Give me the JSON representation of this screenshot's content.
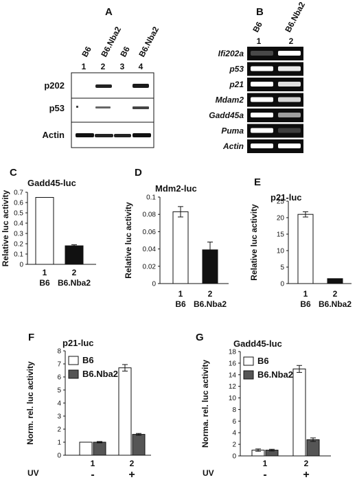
{
  "panels": {
    "A": {
      "letter": "A",
      "lane_numbers": [
        "1",
        "2",
        "3",
        "4"
      ],
      "strain_labels": [
        "B6",
        "B6.Nba2",
        "B6",
        "B6.Nba2"
      ],
      "rows": [
        "p202",
        "p53",
        "Actin"
      ]
    },
    "B": {
      "letter": "B",
      "lane_numbers": [
        "1",
        "2"
      ],
      "strain_labels": [
        "B6",
        "B6.Nba2"
      ],
      "genes": [
        "Ifi202a",
        "p53",
        "p21",
        "Mdam2",
        "Gadd45a",
        "Puma",
        "Actin"
      ]
    }
  },
  "chart_data": [
    {
      "id": "C",
      "type": "bar",
      "letter": "C",
      "title": "Gadd45-luc",
      "ylabel": "Relative luc activity",
      "categories": [
        "1",
        "2"
      ],
      "category_labels": [
        "B6",
        "B6.Nba2"
      ],
      "values": [
        0.65,
        0.18
      ],
      "errors": [
        0,
        0.01
      ],
      "ylim": [
        0,
        0.7
      ],
      "yticks": [
        "0",
        "0.1",
        "0.2",
        "0.3",
        "0.4",
        "0.5",
        "0.6",
        "0.7"
      ],
      "colors": [
        "#ffffff",
        "#111111"
      ]
    },
    {
      "id": "D",
      "type": "bar",
      "letter": "D",
      "title": "Mdm2-luc",
      "ylabel": "Relative luc activity",
      "categories": [
        "1",
        "2"
      ],
      "category_labels": [
        "B6",
        "B6.Nba2"
      ],
      "values": [
        0.083,
        0.039
      ],
      "errors": [
        0.006,
        0.009
      ],
      "ylim": [
        0,
        0.1
      ],
      "yticks": [
        "0",
        "0.02",
        "0.04",
        "0.06",
        "0.08",
        "0.1"
      ],
      "colors": [
        "#ffffff",
        "#111111"
      ]
    },
    {
      "id": "E",
      "type": "bar",
      "letter": "E",
      "title": "p21-luc",
      "ylabel": "Relative luc activity",
      "categories": [
        "1",
        "2"
      ],
      "category_labels": [
        "B6",
        "B6.Nba2"
      ],
      "values": [
        21,
        1.5
      ],
      "errors": [
        0.8,
        0
      ],
      "ylim": [
        0,
        25
      ],
      "yticks": [
        "0",
        "5",
        "10",
        "15",
        "20",
        "25"
      ],
      "colors": [
        "#ffffff",
        "#111111"
      ]
    },
    {
      "id": "F",
      "type": "bar",
      "letter": "F",
      "title": "p21-luc",
      "ylabel": "Norm. rel. luc activity",
      "categories": [
        "1",
        "2"
      ],
      "uv_label": "UV",
      "uv_values": [
        "-",
        "+"
      ],
      "series": [
        {
          "name": "B6",
          "values": [
            1.0,
            6.7
          ],
          "errors": [
            0,
            0.25
          ],
          "color": "#ffffff"
        },
        {
          "name": "B6.Nba2",
          "values": [
            1.0,
            1.6
          ],
          "errors": [
            0.05,
            0.07
          ],
          "color": "#555555"
        }
      ],
      "ylim": [
        0,
        8
      ],
      "yticks": [
        "0",
        "1",
        "2",
        "3",
        "4",
        "5",
        "6",
        "7",
        "8"
      ]
    },
    {
      "id": "G",
      "type": "bar",
      "letter": "G",
      "title": "Gadd45-luc",
      "ylabel": "Norma. rel. luc activity",
      "categories": [
        "1",
        "2"
      ],
      "uv_label": "UV",
      "uv_values": [
        "-",
        "+"
      ],
      "series": [
        {
          "name": "B6",
          "values": [
            1.0,
            15.0
          ],
          "errors": [
            0.2,
            0.6
          ],
          "color": "#ffffff"
        },
        {
          "name": "B6.Nba2",
          "values": [
            1.0,
            2.8
          ],
          "errors": [
            0.15,
            0.3
          ],
          "color": "#555555"
        }
      ],
      "ylim": [
        0,
        18
      ],
      "yticks": [
        "0",
        "2",
        "4",
        "6",
        "8",
        "10",
        "12",
        "14",
        "16",
        "18"
      ]
    }
  ]
}
